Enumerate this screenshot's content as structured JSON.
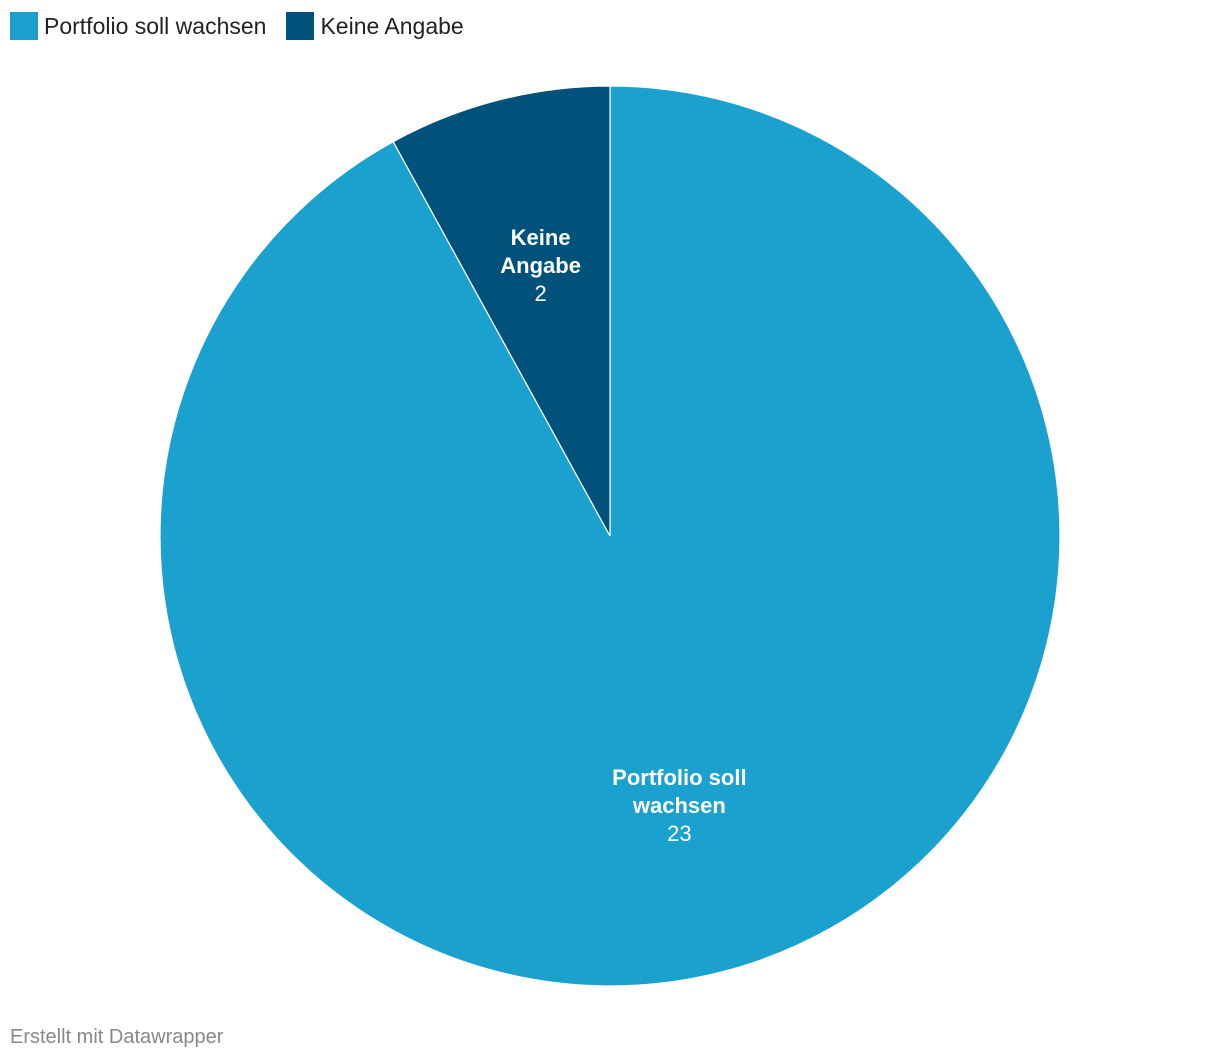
{
  "chart_data": {
    "type": "pie",
    "categories": [
      "Portfolio soll wachsen",
      "Keine Angabe"
    ],
    "values": [
      23,
      2
    ],
    "colors": [
      "#1aa1cd",
      "#00527a"
    ],
    "credit": "Erstellt mit Datawrapper"
  }
}
